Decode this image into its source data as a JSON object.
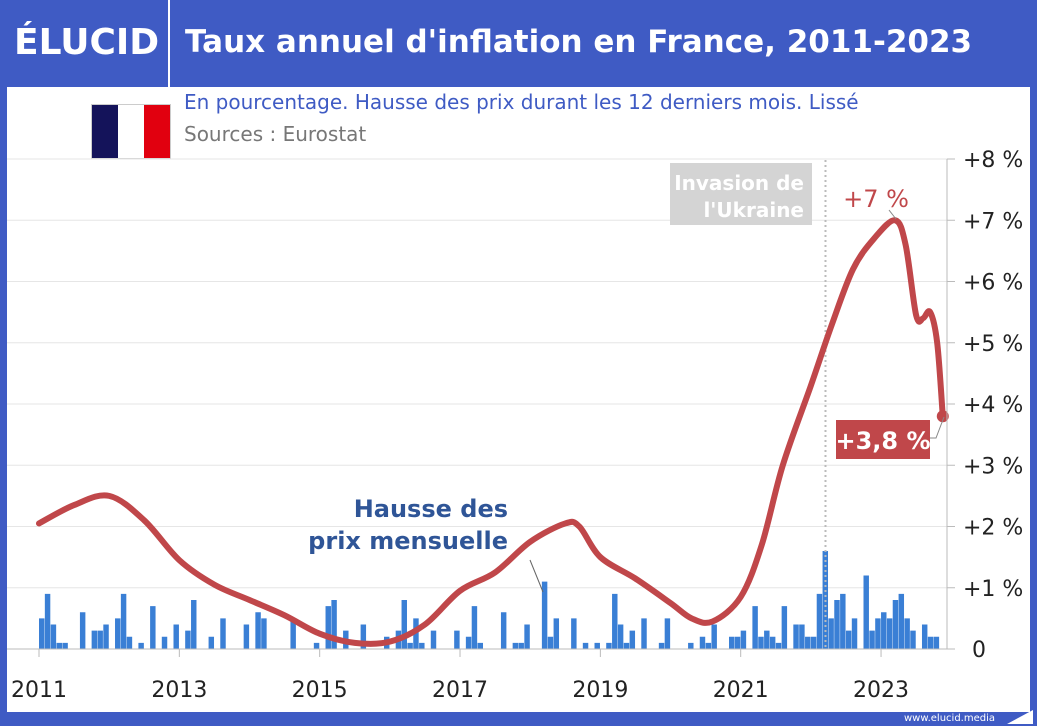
{
  "header": {
    "logo": "ÉLUCID",
    "title": "Taux annuel d'inflation en France, 2011-2023"
  },
  "subtitle": "En pourcentage. Hausse des prix durant les 12 derniers mois. Lissé",
  "source": "Sources : Eurostat",
  "flag_colors": [
    "#14135a",
    "#ffffff",
    "#e1000f"
  ],
  "footer": "www.elucid.media",
  "colors": {
    "frame": "#3f5bc4",
    "line": "#c0474a",
    "bars": "#3a7fd5",
    "annotation_grey": "#d4d4d4"
  },
  "chart_data": {
    "type": "line+bar",
    "title": "Taux annuel d'inflation en France, 2011-2023",
    "xlim": [
      2011,
      2024
    ],
    "ylim": [
      0,
      8
    ],
    "x_ticks": [
      "2011",
      "2013",
      "2015",
      "2017",
      "2019",
      "2021",
      "2023"
    ],
    "y_ticks": [
      "0",
      "+1 %",
      "+2 %",
      "+3 %",
      "+4 %",
      "+5 %",
      "+6 %",
      "+7 %",
      "+8 %"
    ],
    "grid": true,
    "series": [
      {
        "type": "line",
        "points": [
          [
            2011.0,
            2.05
          ],
          [
            2011.5,
            2.35
          ],
          [
            2012.0,
            2.5
          ],
          [
            2012.5,
            2.1
          ],
          [
            2013.0,
            1.45
          ],
          [
            2013.5,
            1.05
          ],
          [
            2014.0,
            0.8
          ],
          [
            2014.5,
            0.55
          ],
          [
            2015.0,
            0.25
          ],
          [
            2015.5,
            0.1
          ],
          [
            2016.0,
            0.12
          ],
          [
            2016.5,
            0.4
          ],
          [
            2017.0,
            0.95
          ],
          [
            2017.5,
            1.25
          ],
          [
            2018.0,
            1.75
          ],
          [
            2018.5,
            2.05
          ],
          [
            2018.7,
            2.0
          ],
          [
            2019.0,
            1.5
          ],
          [
            2019.5,
            1.15
          ],
          [
            2020.0,
            0.75
          ],
          [
            2020.3,
            0.5
          ],
          [
            2020.6,
            0.45
          ],
          [
            2021.0,
            0.85
          ],
          [
            2021.3,
            1.7
          ],
          [
            2021.6,
            3.0
          ],
          [
            2022.0,
            4.3
          ],
          [
            2022.3,
            5.3
          ],
          [
            2022.6,
            6.2
          ],
          [
            2022.9,
            6.7
          ],
          [
            2023.2,
            7.0
          ],
          [
            2023.35,
            6.6
          ],
          [
            2023.5,
            5.45
          ],
          [
            2023.6,
            5.4
          ],
          [
            2023.7,
            5.5
          ],
          [
            2023.8,
            5.0
          ],
          [
            2023.88,
            3.8
          ]
        ]
      },
      {
        "type": "bar",
        "name": "Hausse des prix mensuelle",
        "points": [
          [
            "2011-01",
            0.5
          ],
          [
            "2011-02",
            0.9
          ],
          [
            "2011-03",
            0.4
          ],
          [
            "2011-04",
            0.1
          ],
          [
            "2011-05",
            0.1
          ],
          [
            "2011-08",
            0.6
          ],
          [
            "2011-10",
            0.3
          ],
          [
            "2011-11",
            0.3
          ],
          [
            "2011-12",
            0.4
          ],
          [
            "2012-02",
            0.5
          ],
          [
            "2012-03",
            0.9
          ],
          [
            "2012-04",
            0.2
          ],
          [
            "2012-06",
            0.1
          ],
          [
            "2012-08",
            0.7
          ],
          [
            "2012-10",
            0.2
          ],
          [
            "2012-12",
            0.4
          ],
          [
            "2013-02",
            0.3
          ],
          [
            "2013-03",
            0.8
          ],
          [
            "2013-06",
            0.2
          ],
          [
            "2013-08",
            0.5
          ],
          [
            "2013-12",
            0.4
          ],
          [
            "2014-02",
            0.6
          ],
          [
            "2014-03",
            0.5
          ],
          [
            "2014-08",
            0.5
          ],
          [
            "2014-12",
            0.1
          ],
          [
            "2015-02",
            0.7
          ],
          [
            "2015-03",
            0.8
          ],
          [
            "2015-05",
            0.3
          ],
          [
            "2015-08",
            0.4
          ],
          [
            "2015-12",
            0.2
          ],
          [
            "2016-02",
            0.3
          ],
          [
            "2016-03",
            0.8
          ],
          [
            "2016-04",
            0.1
          ],
          [
            "2016-05",
            0.5
          ],
          [
            "2016-06",
            0.1
          ],
          [
            "2016-08",
            0.3
          ],
          [
            "2016-12",
            0.3
          ],
          [
            "2017-02",
            0.2
          ],
          [
            "2017-03",
            0.7
          ],
          [
            "2017-04",
            0.1
          ],
          [
            "2017-08",
            0.6
          ],
          [
            "2017-10",
            0.1
          ],
          [
            "2017-11",
            0.1
          ],
          [
            "2017-12",
            0.4
          ],
          [
            "2018-03",
            1.1
          ],
          [
            "2018-04",
            0.2
          ],
          [
            "2018-05",
            0.5
          ],
          [
            "2018-08",
            0.5
          ],
          [
            "2018-10",
            0.1
          ],
          [
            "2018-12",
            0.1
          ],
          [
            "2019-02",
            0.1
          ],
          [
            "2019-03",
            0.9
          ],
          [
            "2019-04",
            0.4
          ],
          [
            "2019-05",
            0.1
          ],
          [
            "2019-06",
            0.3
          ],
          [
            "2019-08",
            0.5
          ],
          [
            "2019-11",
            0.1
          ],
          [
            "2019-12",
            0.5
          ],
          [
            "2020-04",
            0.1
          ],
          [
            "2020-06",
            0.2
          ],
          [
            "2020-07",
            0.1
          ],
          [
            "2020-08",
            0.4
          ],
          [
            "2020-11",
            0.2
          ],
          [
            "2020-12",
            0.2
          ],
          [
            "2021-01",
            0.3
          ],
          [
            "2021-03",
            0.7
          ],
          [
            "2021-04",
            0.2
          ],
          [
            "2021-05",
            0.3
          ],
          [
            "2021-06",
            0.2
          ],
          [
            "2021-07",
            0.1
          ],
          [
            "2021-08",
            0.7
          ],
          [
            "2021-10",
            0.4
          ],
          [
            "2021-11",
            0.4
          ],
          [
            "2021-12",
            0.2
          ],
          [
            "2022-01",
            0.2
          ],
          [
            "2022-02",
            0.9
          ],
          [
            "2022-03",
            1.6
          ],
          [
            "2022-04",
            0.5
          ],
          [
            "2022-05",
            0.8
          ],
          [
            "2022-06",
            0.9
          ],
          [
            "2022-07",
            0.3
          ],
          [
            "2022-08",
            0.5
          ],
          [
            "2022-10",
            1.2
          ],
          [
            "2022-11",
            0.3
          ],
          [
            "2022-12",
            0.5
          ],
          [
            "2023-01",
            0.6
          ],
          [
            "2023-02",
            0.5
          ],
          [
            "2023-03",
            0.8
          ],
          [
            "2023-04",
            0.9
          ],
          [
            "2023-05",
            0.5
          ],
          [
            "2023-06",
            0.3
          ],
          [
            "2023-08",
            0.4
          ],
          [
            "2023-09",
            0.2
          ],
          [
            "2023-10",
            0.2
          ]
        ]
      }
    ],
    "annotations": {
      "bars_label_line1": "Hausse des",
      "bars_label_line2": "prix mensuelle",
      "invasion_line1": "Invasion de",
      "invasion_line2": "l'Ukraine",
      "invasion_date": "2022-03",
      "peak_label": "+7 %",
      "last_label": "+3,8 %"
    }
  }
}
